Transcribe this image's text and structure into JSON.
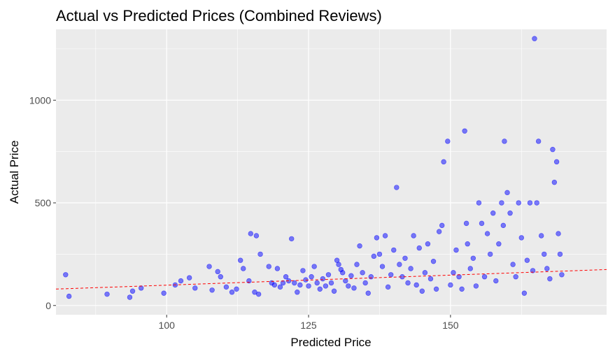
{
  "chart_data": {
    "type": "scatter",
    "title": "Actual vs Predicted Prices (Combined Reviews)",
    "xlabel": "Predicted Price",
    "ylabel": "Actual Price",
    "xlim": [
      80.5,
      177.5
    ],
    "ylim": [
      -45,
      1345
    ],
    "x_ticks": [
      100,
      125,
      150
    ],
    "x_tick_labels": [
      "100",
      "125",
      "150"
    ],
    "y_ticks": [
      0,
      500,
      1000
    ],
    "y_tick_labels": [
      "0",
      "500",
      "1000"
    ],
    "grid": true,
    "legend": "none",
    "colors": {
      "panel_background": "#ebebeb",
      "grid": "#ffffff",
      "points": "#0000ff",
      "reference_line": "#ff0000"
    },
    "reference_line": {
      "style": "dashed",
      "x": [
        80.5,
        177.5
      ],
      "y": [
        80,
        175
      ]
    },
    "series": [
      {
        "points": [
          [
            82.2,
            150
          ],
          [
            82.8,
            45
          ],
          [
            89.5,
            55
          ],
          [
            93.5,
            40
          ],
          [
            94,
            70
          ],
          [
            95.5,
            85
          ],
          [
            99.5,
            60
          ],
          [
            101.5,
            100
          ],
          [
            102.5,
            120
          ],
          [
            104,
            135
          ],
          [
            105,
            85
          ],
          [
            107.5,
            190
          ],
          [
            108,
            75
          ],
          [
            109,
            165
          ],
          [
            109.5,
            140
          ],
          [
            110.5,
            90
          ],
          [
            111.5,
            65
          ],
          [
            112.3,
            80
          ],
          [
            113,
            220
          ],
          [
            113.5,
            180
          ],
          [
            114.5,
            120
          ],
          [
            114.8,
            350
          ],
          [
            115.5,
            65
          ],
          [
            115.8,
            340
          ],
          [
            116.2,
            55
          ],
          [
            116.5,
            250
          ],
          [
            118,
            190
          ],
          [
            118.5,
            110
          ],
          [
            119,
            100
          ],
          [
            119.5,
            180
          ],
          [
            120,
            90
          ],
          [
            120.5,
            110
          ],
          [
            121,
            140
          ],
          [
            121.5,
            120
          ],
          [
            122,
            325
          ],
          [
            122.5,
            110
          ],
          [
            123,
            65
          ],
          [
            123.5,
            100
          ],
          [
            124,
            170
          ],
          [
            124.5,
            125
          ],
          [
            125,
            95
          ],
          [
            125.5,
            140
          ],
          [
            126,
            190
          ],
          [
            126.5,
            110
          ],
          [
            127,
            80
          ],
          [
            127.5,
            130
          ],
          [
            128,
            95
          ],
          [
            128.5,
            150
          ],
          [
            129,
            110
          ],
          [
            129.5,
            70
          ],
          [
            130,
            220
          ],
          [
            130.3,
            200
          ],
          [
            130.7,
            175
          ],
          [
            131,
            160
          ],
          [
            131.5,
            120
          ],
          [
            132,
            95
          ],
          [
            132.5,
            145
          ],
          [
            133,
            85
          ],
          [
            133.5,
            200
          ],
          [
            134,
            290
          ],
          [
            134.5,
            160
          ],
          [
            135,
            110
          ],
          [
            135.5,
            60
          ],
          [
            136,
            140
          ],
          [
            136.5,
            240
          ],
          [
            137,
            330
          ],
          [
            137.5,
            250
          ],
          [
            138,
            190
          ],
          [
            138.5,
            340
          ],
          [
            139,
            90
          ],
          [
            139.5,
            150
          ],
          [
            140,
            270
          ],
          [
            140.5,
            575
          ],
          [
            141,
            200
          ],
          [
            141.5,
            140
          ],
          [
            142,
            230
          ],
          [
            142.5,
            110
          ],
          [
            143,
            180
          ],
          [
            143.5,
            340
          ],
          [
            144,
            100
          ],
          [
            144.5,
            280
          ],
          [
            145,
            70
          ],
          [
            145.5,
            160
          ],
          [
            146,
            300
          ],
          [
            146.5,
            130
          ],
          [
            147,
            215
          ],
          [
            147.5,
            80
          ],
          [
            148,
            360
          ],
          [
            148.5,
            390
          ],
          [
            148.8,
            700
          ],
          [
            149.5,
            800
          ],
          [
            150,
            100
          ],
          [
            150.5,
            160
          ],
          [
            151,
            270
          ],
          [
            151.5,
            140
          ],
          [
            152,
            80
          ],
          [
            152.5,
            850
          ],
          [
            152.8,
            400
          ],
          [
            153,
            300
          ],
          [
            153.5,
            180
          ],
          [
            154,
            230
          ],
          [
            154.5,
            95
          ],
          [
            155,
            500
          ],
          [
            155.5,
            400
          ],
          [
            156,
            140
          ],
          [
            156.5,
            350
          ],
          [
            157,
            250
          ],
          [
            157.5,
            450
          ],
          [
            158,
            120
          ],
          [
            158.5,
            300
          ],
          [
            159,
            500
          ],
          [
            159.3,
            390
          ],
          [
            159.5,
            800
          ],
          [
            160,
            550
          ],
          [
            160.5,
            450
          ],
          [
            161,
            200
          ],
          [
            161.5,
            140
          ],
          [
            162,
            500
          ],
          [
            162.5,
            330
          ],
          [
            163,
            60
          ],
          [
            163.5,
            220
          ],
          [
            164,
            500
          ],
          [
            164.5,
            170
          ],
          [
            164.8,
            1300
          ],
          [
            165.2,
            500
          ],
          [
            165.5,
            800
          ],
          [
            166,
            340
          ],
          [
            166.5,
            250
          ],
          [
            167,
            180
          ],
          [
            167.5,
            130
          ],
          [
            168,
            760
          ],
          [
            168.3,
            600
          ],
          [
            168.7,
            700
          ],
          [
            169,
            350
          ],
          [
            169.3,
            250
          ],
          [
            169.6,
            150
          ]
        ]
      }
    ]
  }
}
